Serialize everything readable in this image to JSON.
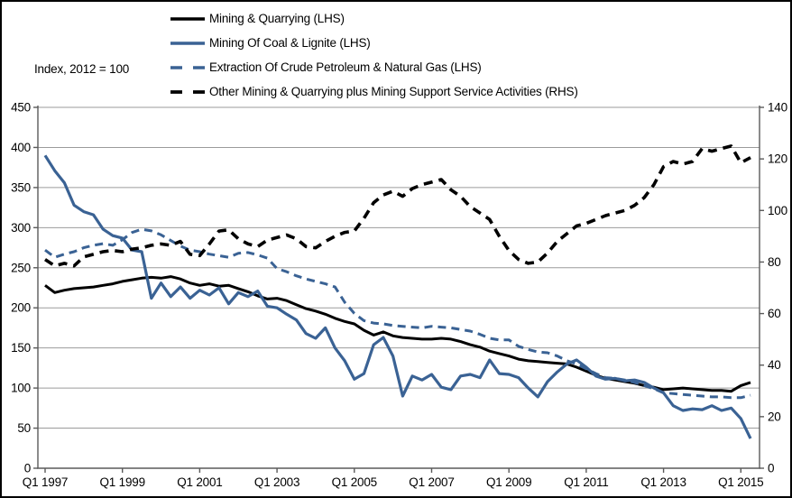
{
  "axis_note": "Index, 2012 = 100",
  "chart_data": {
    "type": "line",
    "title": "",
    "x_start": "Q1 1997",
    "x_end": "Q2 2015",
    "frequency": "quarterly",
    "grid": true,
    "legend_position": "top",
    "x_tick_labels": [
      {
        "label": "Q1 1997",
        "q": 0
      },
      {
        "label": "Q1 1999",
        "q": 8
      },
      {
        "label": "Q1 2001",
        "q": 16
      },
      {
        "label": "Q1 2003",
        "q": 24
      },
      {
        "label": "Q1 2005",
        "q": 32
      },
      {
        "label": "Q1 2007",
        "q": 40
      },
      {
        "label": "Q1 2009",
        "q": 48
      },
      {
        "label": "Q1 2011",
        "q": 56
      },
      {
        "label": "Q1 2013",
        "q": 64
      },
      {
        "label": "Q1 2015",
        "q": 72
      }
    ],
    "axes": {
      "left": {
        "min": 0,
        "max": 450,
        "step": 50,
        "ticks": [
          450,
          400,
          350,
          300,
          250,
          200,
          150,
          100,
          50,
          0
        ]
      },
      "right": {
        "min": 0,
        "max": 140,
        "step": 20,
        "ticks": [
          140,
          120,
          100,
          80,
          60,
          40,
          20,
          0
        ]
      }
    },
    "colors": {
      "black": "#000000",
      "blue": "#3A6294",
      "gridline": "#9B9B9B",
      "spine": "#5A5A5A"
    },
    "series": [
      {
        "name": "Mining & Quarrying (LHS)",
        "axis": "LHS",
        "color": "#000000",
        "style": "solid",
        "dash": "none",
        "width": 3,
        "values": [
          228,
          219,
          222,
          224,
          225,
          226,
          228,
          230,
          233,
          235,
          237,
          238,
          237,
          239,
          236,
          231,
          228,
          230,
          227,
          228,
          224,
          220,
          215,
          211,
          212,
          209,
          204,
          199,
          196,
          192,
          187,
          183,
          180,
          172,
          166,
          170,
          165,
          163,
          162,
          161,
          161,
          162,
          161,
          158,
          154,
          151,
          146,
          143,
          140,
          136,
          134,
          133,
          132,
          131,
          130,
          126,
          121,
          116,
          112,
          110,
          108,
          106,
          103,
          101,
          98,
          99,
          100,
          99,
          98,
          97,
          97,
          96,
          103,
          107
        ]
      },
      {
        "name": "Mining Of Coal & Lignite (LHS)",
        "axis": "LHS",
        "color": "#3A6294",
        "style": "solid",
        "dash": "none",
        "width": 3.2,
        "values": [
          390,
          371,
          356,
          328,
          320,
          316,
          298,
          290,
          287,
          272,
          270,
          212,
          231,
          214,
          226,
          212,
          222,
          216,
          225,
          205,
          219,
          214,
          221,
          202,
          200,
          192,
          185,
          168,
          162,
          175,
          150,
          134,
          111,
          118,
          154,
          163,
          140,
          90,
          115,
          110,
          117,
          101,
          98,
          115,
          117,
          113,
          135,
          118,
          117,
          113,
          100,
          89,
          108,
          120,
          130,
          135,
          126,
          115,
          111,
          112,
          109,
          110,
          107,
          100,
          94,
          78,
          72,
          74,
          73,
          78,
          72,
          75,
          62,
          37
        ]
      },
      {
        "name": "Extraction Of Crude Petroleum & Natural Gas (LHS)",
        "axis": "LHS",
        "color": "#3A6294",
        "style": "dashed",
        "dash": "9 6",
        "width": 3,
        "values": [
          272,
          263,
          267,
          270,
          275,
          278,
          280,
          278,
          285,
          294,
          298,
          296,
          291,
          284,
          277,
          272,
          270,
          267,
          265,
          263,
          268,
          269,
          266,
          262,
          249,
          245,
          240,
          236,
          233,
          230,
          226,
          207,
          193,
          184,
          181,
          180,
          178,
          177,
          176,
          175,
          177,
          176,
          175,
          173,
          171,
          167,
          162,
          160,
          160,
          152,
          148,
          145,
          144,
          140,
          134,
          130,
          124,
          118,
          113,
          112,
          110,
          107,
          103,
          99,
          94,
          93,
          92,
          91,
          90,
          89,
          89,
          88,
          88,
          91
        ]
      },
      {
        "name": "Other Mining & Quarrying plus Mining Support Service Activities (RHS)",
        "axis": "RHS",
        "color": "#000000",
        "style": "dashed",
        "dash": "10 7",
        "width": 3.6,
        "values": [
          81,
          78.5,
          79.5,
          78.5,
          82,
          83,
          84,
          84.5,
          84,
          85,
          85.5,
          86.5,
          87,
          86.5,
          88,
          83,
          82.5,
          87,
          92,
          92.5,
          89,
          87,
          86,
          88.5,
          89.5,
          90.5,
          89,
          86,
          85.5,
          88,
          90,
          91.5,
          92,
          97,
          103,
          106,
          107.5,
          105.5,
          108.5,
          110,
          111,
          112,
          108,
          105.5,
          101.5,
          99,
          96.5,
          90,
          84.5,
          81,
          79.5,
          80,
          83.5,
          88,
          91,
          94,
          95,
          96.5,
          98,
          99,
          100,
          102,
          105,
          110,
          117,
          119,
          118,
          119,
          124,
          123,
          124,
          125,
          118.5,
          120.5
        ]
      }
    ]
  }
}
